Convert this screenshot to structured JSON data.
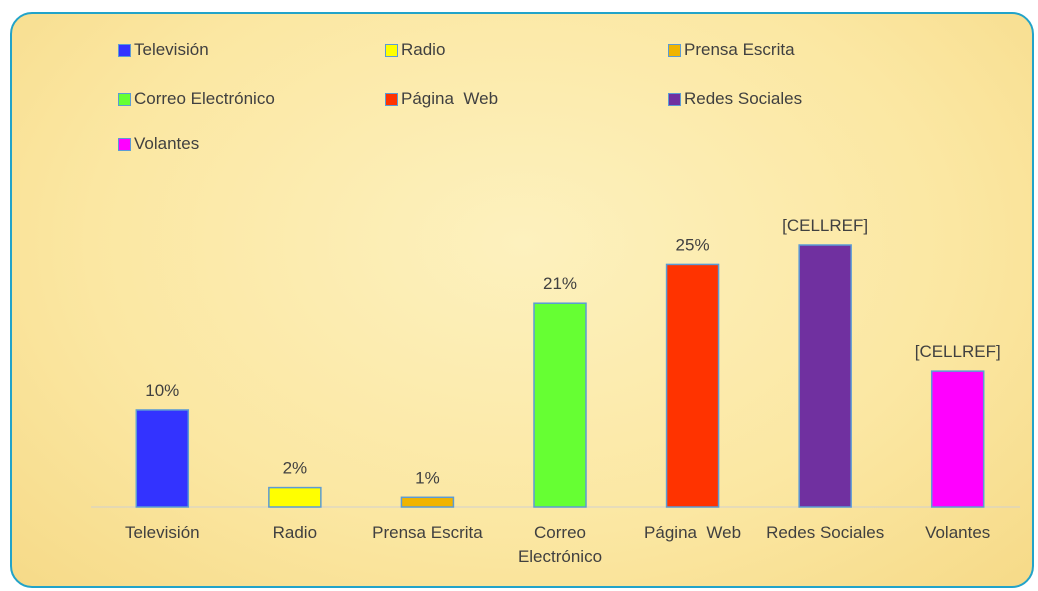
{
  "chart_data": {
    "type": "bar",
    "categories": [
      "Televisión",
      "Radio",
      "Prensa Escrita",
      "Correo Electrónico",
      "Página  Web",
      "Redes Sociales",
      "Volantes"
    ],
    "values": [
      10,
      2,
      1,
      21,
      25,
      27,
      14
    ],
    "value_labels": [
      "10%",
      "2%",
      "1%",
      "21%",
      "25%",
      "[CELLREF]",
      "[CELLREF]"
    ],
    "colors": [
      "#3333ff",
      "#ffff00",
      "#f0b400",
      "#66ff33",
      "#ff3300",
      "#7030a0",
      "#ff00ff"
    ],
    "legend": "top"
  }
}
